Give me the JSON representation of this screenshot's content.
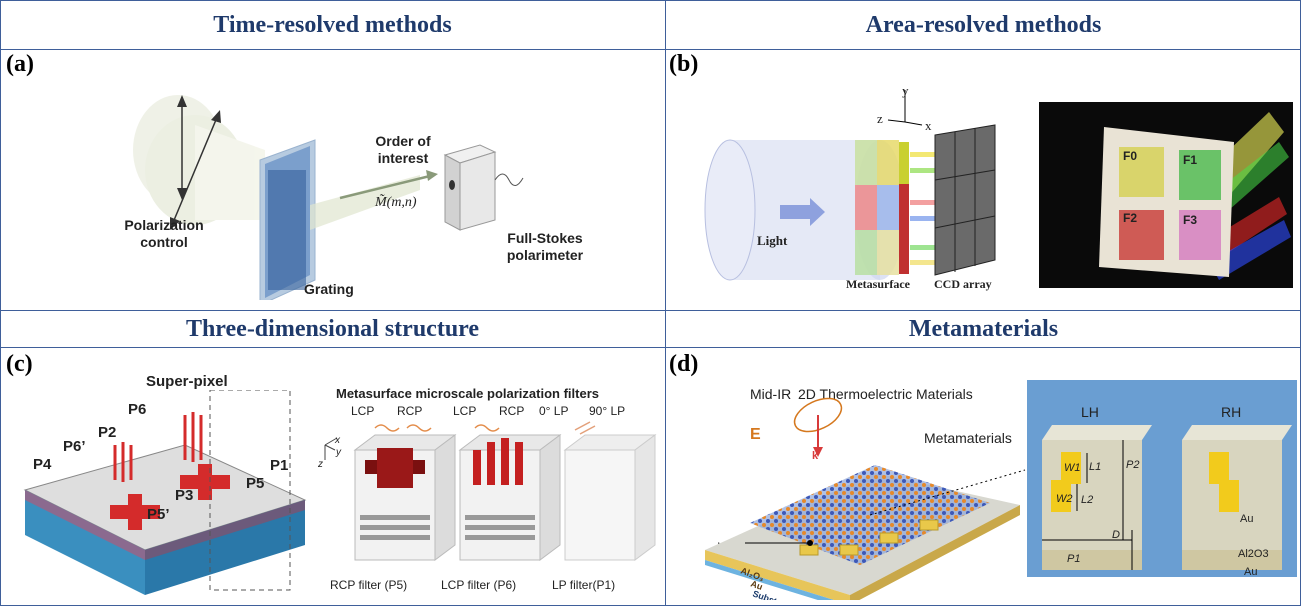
{
  "headers": {
    "top_left": "Time-resolved methods",
    "top_right": "Area-resolved methods",
    "bottom_left": "Three-dimensional structure",
    "bottom_right": "Metamaterials"
  },
  "panels": {
    "a": {
      "tag": "(a)",
      "polarization_control": "Polarization control",
      "grating": "Grating",
      "order_of_interest": "Order of interest",
      "m_symbol": "M̃(m,n)",
      "polarimeter": "Full-Stokes polarimeter"
    },
    "b": {
      "tag": "(b)",
      "light": "Light",
      "metasurface": "Metasurface",
      "ccd_array": "CCD array",
      "axis_x": "x",
      "axis_y": "y",
      "axis_z": "z",
      "filters": [
        "F0",
        "F1",
        "F2",
        "F3"
      ]
    },
    "c": {
      "tag": "(c)",
      "super_pixel": "Super-pixel",
      "pixels": [
        "P6",
        "P2",
        "P6’",
        "P4",
        "P1",
        "P5",
        "P3",
        "P5’"
      ],
      "filters_title": "Metasurface microscale polarization filters",
      "col1_labels": [
        "LCP",
        "RCP"
      ],
      "col2_labels": [
        "LCP",
        "RCP"
      ],
      "col3_labels": [
        "0° LP",
        "90° LP"
      ],
      "captions": [
        "RCP filter (P5)",
        "LCP filter (P6)",
        "LP filter(P1)"
      ],
      "axes": [
        "x",
        "y",
        "z"
      ]
    },
    "d": {
      "tag": "(d)",
      "mid_ir": "Mid-IR",
      "thermo": "2D Thermoelectric Materials",
      "metamaterials": "Metamaterials",
      "e_label": "E",
      "k_label": "k",
      "vph": "Vph",
      "layers": [
        "Al2O3",
        "Au",
        "Substrate"
      ],
      "lh": "LH",
      "rh": "RH",
      "dims": [
        "W1",
        "L1",
        "W2",
        "L2",
        "P2",
        "P1",
        "D"
      ],
      "inset_layers": [
        "Au",
        "Al2O3",
        "Au"
      ]
    }
  }
}
